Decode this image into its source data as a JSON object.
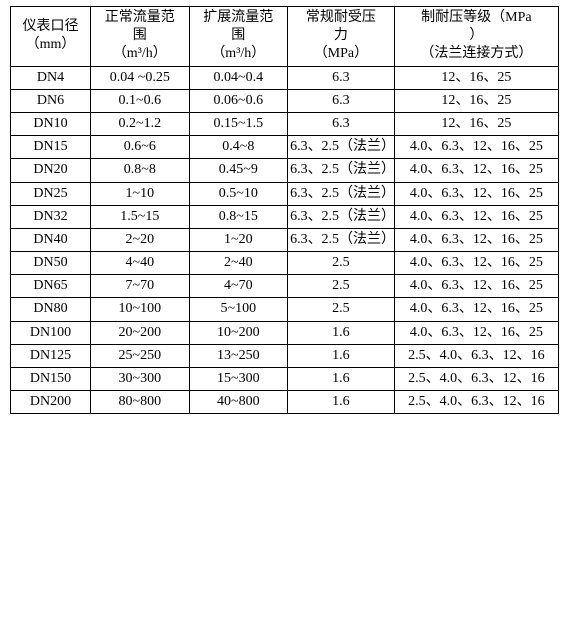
{
  "table": {
    "columns": [
      {
        "l1": "仪表口径",
        "l2": "（mm）",
        "l3": ""
      },
      {
        "l1": "正常流量范",
        "l2": "围",
        "l3": "（m³/h）"
      },
      {
        "l1": "扩展流量范",
        "l2": "围",
        "l3": "（m³/h）"
      },
      {
        "l1": "常规耐受压",
        "l2": "力",
        "l3": "（MPa）"
      },
      {
        "l1": "制耐压等级（MPa",
        "l2": "）",
        "l3": "（法兰连接方式）"
      }
    ],
    "rows": [
      {
        "c1": "DN4",
        "c2": "0.04 ~0.25",
        "c3": "0.04~0.4",
        "c4": "6.3",
        "c5": "12、16、25"
      },
      {
        "c1": "DN6",
        "c2": "0.1~0.6",
        "c3": "0.06~0.6",
        "c4": "6.3",
        "c5": "12、16、25"
      },
      {
        "c1": "DN10",
        "c2": "0.2~1.2",
        "c3": "0.15~1.5",
        "c4": "6.3",
        "c5": "12、16、25"
      },
      {
        "c1": "DN15",
        "c2": "0.6~6",
        "c3": "0.4~8",
        "c4": "6.3、2.5（法兰）",
        "c5": "4.0、6.3、12、16、25"
      },
      {
        "c1": "DN20",
        "c2": "0.8~8",
        "c3": "0.45~9",
        "c4": "6.3、2.5（法兰）",
        "c5": "4.0、6.3、12、16、25"
      },
      {
        "c1": "DN25",
        "c2": "1~10",
        "c3": "0.5~10",
        "c4": "6.3、2.5（法兰）",
        "c5": "4.0、6.3、12、16、25"
      },
      {
        "c1": "DN32",
        "c2": "1.5~15",
        "c3": "0.8~15",
        "c4": "6.3、2.5（法兰）",
        "c5": "4.0、6.3、12、16、25"
      },
      {
        "c1": "DN40",
        "c2": "2~20",
        "c3": "1~20",
        "c4": "6.3、2.5（法兰）",
        "c5": "4.0、6.3、12、16、25"
      },
      {
        "c1": "DN50",
        "c2": "4~40",
        "c3": "2~40",
        "c4": "2.5",
        "c5": "4.0、6.3、12、16、25"
      },
      {
        "c1": "DN65",
        "c2": "7~70",
        "c3": "4~70",
        "c4": "2.5",
        "c5": "4.0、6.3、12、16、25"
      },
      {
        "c1": "DN80",
        "c2": "10~100",
        "c3": "5~100",
        "c4": "2.5",
        "c5": "4.0、6.3、12、16、25"
      },
      {
        "c1": "DN100",
        "c2": "20~200",
        "c3": "10~200",
        "c4": "1.6",
        "c5": "4.0、6.3、12、16、25"
      },
      {
        "c1": "DN125",
        "c2": "25~250",
        "c3": "13~250",
        "c4": "1.6",
        "c5": "2.5、4.0、6.3、12、16"
      },
      {
        "c1": "DN150",
        "c2": "30~300",
        "c3": "15~300",
        "c4": "1.6",
        "c5": "2.5、4.0、6.3、12、16"
      },
      {
        "c1": "DN200",
        "c2": "80~800",
        "c3": "40~800",
        "c4": "1.6",
        "c5": "2.5、4.0、6.3、12、16"
      }
    ]
  }
}
